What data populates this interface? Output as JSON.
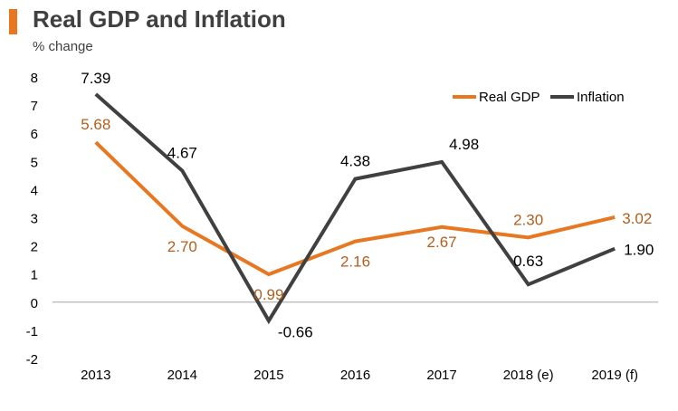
{
  "header": {
    "title": "Real GDP and Inflation",
    "subtitle": "% change"
  },
  "colors": {
    "accent": "#E87722",
    "real_gdp": "#E87722",
    "inflation": "#404040",
    "axis": "#A6A6A6"
  },
  "chart_data": {
    "type": "line",
    "title": "Real GDP and Inflation",
    "subtitle": "% change",
    "xlabel": "",
    "ylabel": "% change",
    "categories": [
      "2013",
      "2014",
      "2015",
      "2016",
      "2017",
      "2018 (e)",
      "2019 (f)"
    ],
    "ylim": [
      -2,
      8
    ],
    "yticks": [
      -2,
      -1,
      0,
      1,
      2,
      3,
      4,
      5,
      6,
      7,
      8
    ],
    "grid": false,
    "legend_position": "top-right",
    "series": [
      {
        "name": "Real GDP",
        "color": "#E87722",
        "values": [
          5.68,
          2.7,
          0.99,
          2.16,
          2.67,
          2.3,
          3.02
        ],
        "labels": [
          "5.68",
          "2.70",
          "0.99",
          "2.16",
          "2.67",
          "2.30",
          "3.02"
        ]
      },
      {
        "name": "Inflation",
        "color": "#404040",
        "values": [
          7.39,
          4.67,
          -0.66,
          4.38,
          4.98,
          0.63,
          1.9
        ],
        "labels": [
          "7.39",
          "4.67",
          "-0.66",
          "4.38",
          "4.98",
          "0.63",
          "1.90"
        ]
      }
    ]
  }
}
